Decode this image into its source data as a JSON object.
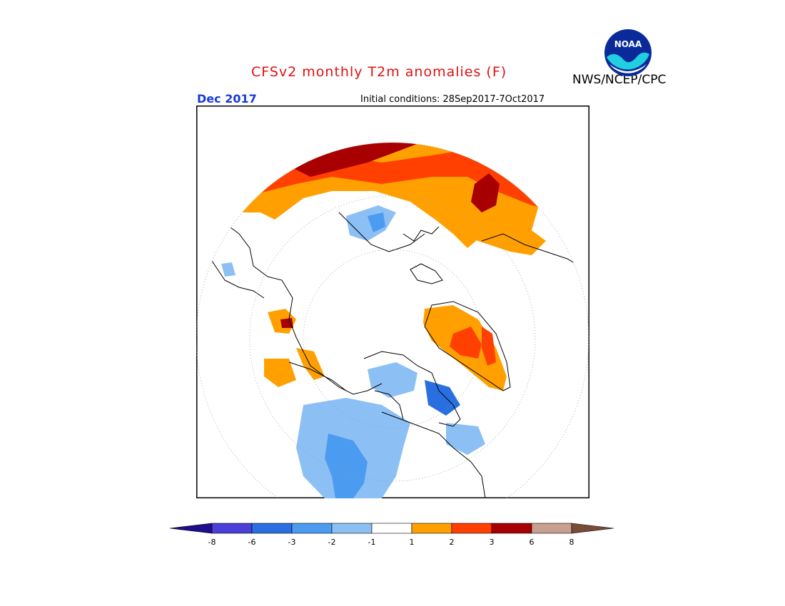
{
  "title": "CFSv2 monthly T2m anomalies (F)",
  "agency": "NWS/NCEP/CPC",
  "logo_text": "NOAA",
  "period": "Dec 2017",
  "initial_conditions": "Initial conditions: 28Sep2017-7Oct2017",
  "legend": {
    "ticks": [
      "-8",
      "-6",
      "-3",
      "-2",
      "-1",
      "1",
      "2",
      "3",
      "6",
      "8"
    ],
    "colors": [
      "#1f0e8c",
      "#4a3fd6",
      "#2a6fe0",
      "#4b9bf0",
      "#8cc0f5",
      "#ffffff",
      "#ffa000",
      "#ff4000",
      "#a80000",
      "#c8a090",
      "#7a4a3a"
    ]
  },
  "map_colors": {
    "warm_1_2": "#ffa000",
    "warm_2_3": "#ff4000",
    "warm_3_6": "#a80000",
    "cool_1_2": "#8cc0f5",
    "cool_2_3": "#4b9bf0",
    "cool_3_6": "#2a6fe0",
    "coast": "#000000"
  }
}
